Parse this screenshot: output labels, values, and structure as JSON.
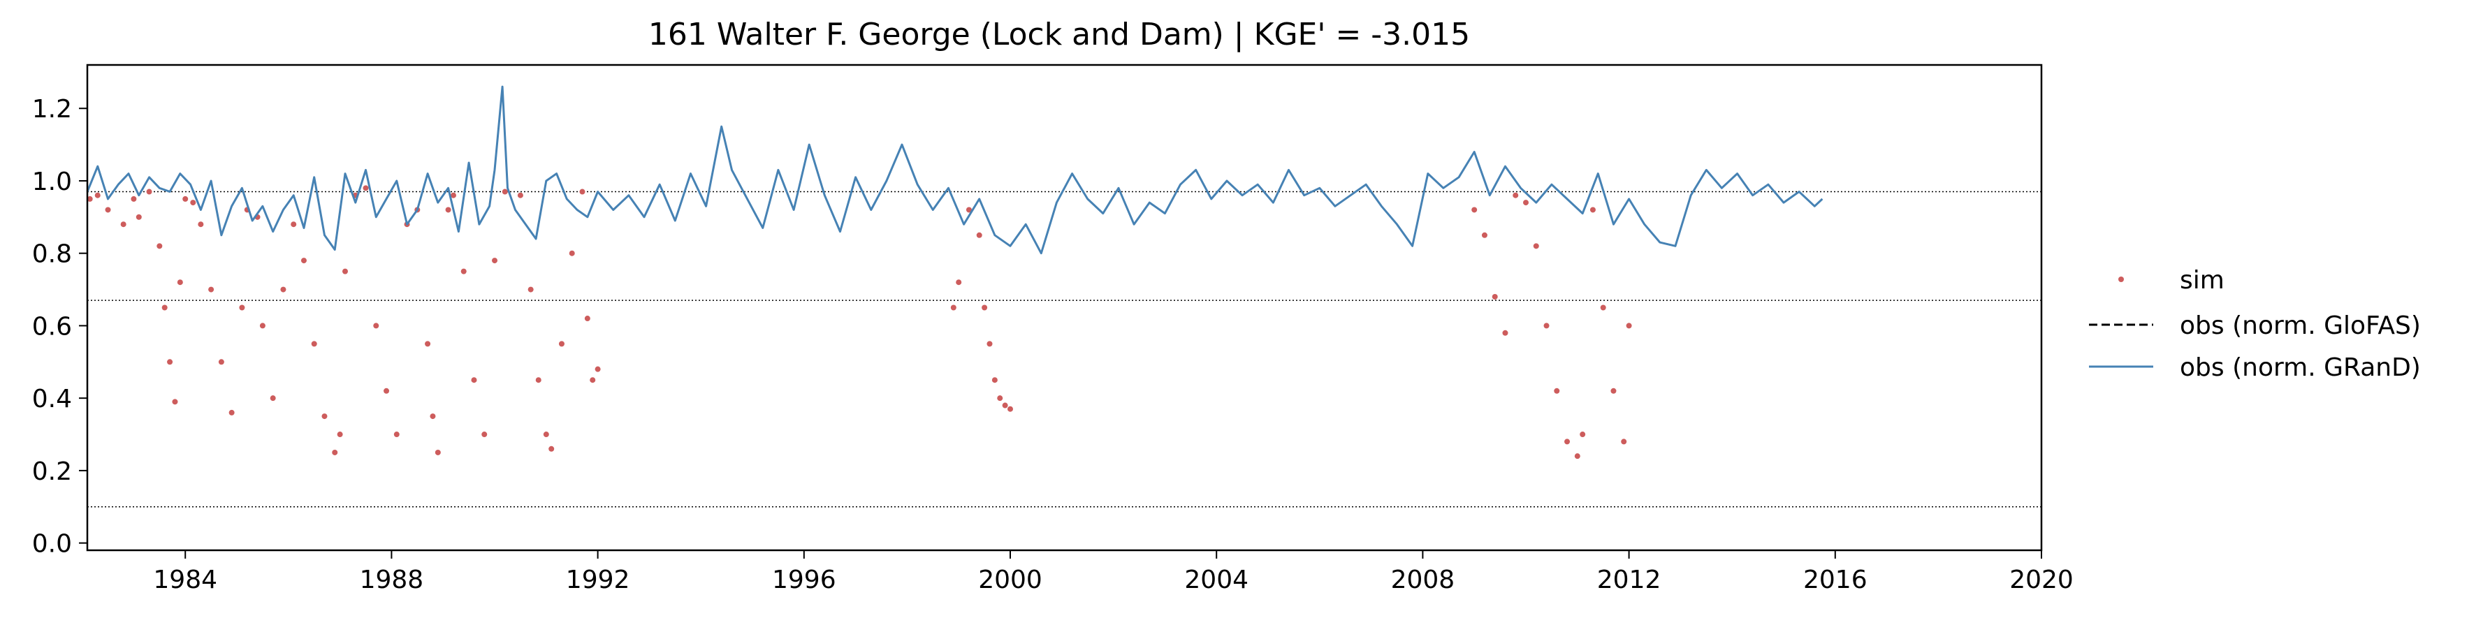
{
  "chart_data": {
    "type": "line",
    "title": "161  Walter F. George (Lock and  Dam) | KGE' = -3.015",
    "xlabel": "",
    "ylabel": "",
    "xlim": [
      1982.1,
      2020.0
    ],
    "ylim": [
      -0.02,
      1.32
    ],
    "x_ticks": [
      1984,
      1988,
      1992,
      1996,
      2000,
      2004,
      2008,
      2012,
      2016,
      2020
    ],
    "y_ticks": [
      0.0,
      0.2,
      0.4,
      0.6,
      0.8,
      1.0,
      1.2
    ],
    "y_tick_labels": [
      "0.0",
      "0.2",
      "0.4",
      "0.6",
      "0.8",
      "1.0",
      "1.2"
    ],
    "reference_lines": [
      0.97,
      0.67,
      0.1
    ],
    "grid": false,
    "legend_position": "right-outside",
    "series": [
      {
        "name": "sim",
        "style": "scatter",
        "color": "#cd5c5c",
        "x": [
          1982.15,
          1982.3,
          1982.5,
          1982.8,
          1983.0,
          1983.1,
          1983.3,
          1983.5,
          1983.6,
          1983.7,
          1983.8,
          1983.9,
          1984.0,
          1984.15,
          1984.3,
          1984.5,
          1984.7,
          1984.9,
          1985.1,
          1985.2,
          1985.4,
          1985.5,
          1985.7,
          1985.9,
          1986.1,
          1986.3,
          1986.5,
          1986.7,
          1986.9,
          1987.0,
          1987.1,
          1987.3,
          1987.5,
          1987.7,
          1987.9,
          1988.1,
          1988.3,
          1988.5,
          1988.7,
          1988.8,
          1988.9,
          1989.1,
          1989.2,
          1989.4,
          1989.6,
          1989.8,
          1990.0,
          1990.2,
          1990.5,
          1990.7,
          1990.85,
          1991.0,
          1991.1,
          1991.3,
          1991.5,
          1991.7,
          1991.8,
          1991.9,
          1992.0,
          1998.9,
          1999.0,
          1999.2,
          1999.4,
          1999.5,
          1999.6,
          1999.7,
          1999.8,
          1999.9,
          2000.0,
          2009.0,
          2009.2,
          2009.4,
          2009.6,
          2009.8,
          2010.0,
          2010.2,
          2010.4,
          2010.6,
          2010.8,
          2011.0,
          2011.1,
          2011.3,
          2011.5,
          2011.7,
          2011.9,
          2012.0
        ],
        "y": [
          0.95,
          0.96,
          0.92,
          0.88,
          0.95,
          0.9,
          0.97,
          0.82,
          0.65,
          0.5,
          0.39,
          0.72,
          0.95,
          0.94,
          0.88,
          0.7,
          0.5,
          0.36,
          0.65,
          0.92,
          0.9,
          0.6,
          0.4,
          0.7,
          0.88,
          0.78,
          0.55,
          0.35,
          0.25,
          0.3,
          0.75,
          0.96,
          0.98,
          0.6,
          0.42,
          0.3,
          0.88,
          0.92,
          0.55,
          0.35,
          0.25,
          0.92,
          0.96,
          0.75,
          0.45,
          0.3,
          0.78,
          0.97,
          0.96,
          0.7,
          0.45,
          0.3,
          0.26,
          0.55,
          0.8,
          0.97,
          0.62,
          0.45,
          0.48,
          0.65,
          0.72,
          0.92,
          0.85,
          0.65,
          0.55,
          0.45,
          0.4,
          0.38,
          0.37,
          0.92,
          0.85,
          0.68,
          0.58,
          0.96,
          0.94,
          0.82,
          0.6,
          0.42,
          0.28,
          0.24,
          0.3,
          0.92,
          0.65,
          0.42,
          0.28,
          0.6
        ]
      },
      {
        "name": "obs (norm. GloFAS)",
        "style": "dashed",
        "color": "#000000",
        "x": [],
        "y": []
      },
      {
        "name": "obs (norm. GRanD)",
        "style": "line",
        "color": "#4682b4",
        "x": [
          1982.1,
          1982.3,
          1982.5,
          1982.7,
          1982.9,
          1983.1,
          1983.3,
          1983.5,
          1983.7,
          1983.9,
          1984.1,
          1984.3,
          1984.5,
          1984.7,
          1984.9,
          1985.1,
          1985.3,
          1985.5,
          1985.7,
          1985.9,
          1986.1,
          1986.3,
          1986.5,
          1986.7,
          1986.9,
          1987.1,
          1987.3,
          1987.5,
          1987.7,
          1987.9,
          1988.1,
          1988.3,
          1988.5,
          1988.7,
          1988.9,
          1989.1,
          1989.3,
          1989.5,
          1989.7,
          1989.9,
          1990.0,
          1990.15,
          1990.25,
          1990.4,
          1990.6,
          1990.8,
          1991.0,
          1991.2,
          1991.4,
          1991.6,
          1991.8,
          1992.0,
          1992.3,
          1992.6,
          1992.9,
          1993.2,
          1993.5,
          1993.8,
          1994.1,
          1994.4,
          1994.6,
          1994.9,
          1995.2,
          1995.5,
          1995.8,
          1996.1,
          1996.4,
          1996.7,
          1997.0,
          1997.3,
          1997.6,
          1997.9,
          1998.2,
          1998.5,
          1998.8,
          1999.1,
          1999.4,
          1999.7,
          2000.0,
          2000.3,
          2000.6,
          2000.9,
          2001.2,
          2001.5,
          2001.8,
          2002.1,
          2002.4,
          2002.7,
          2003.0,
          2003.3,
          2003.6,
          2003.9,
          2004.2,
          2004.5,
          2004.8,
          2005.1,
          2005.4,
          2005.7,
          2006.0,
          2006.3,
          2006.6,
          2006.9,
          2007.2,
          2007.5,
          2007.8,
          2008.1,
          2008.4,
          2008.7,
          2009.0,
          2009.3,
          2009.6,
          2009.9,
          2010.2,
          2010.5,
          2010.8,
          2011.1,
          2011.4,
          2011.7,
          2012.0,
          2012.3,
          2012.6,
          2012.9,
          2013.2,
          2013.5,
          2013.8,
          2014.1,
          2014.4,
          2014.7,
          2015.0,
          2015.3,
          2015.6,
          2015.75
        ],
        "y": [
          0.97,
          1.04,
          0.95,
          0.99,
          1.02,
          0.96,
          1.01,
          0.98,
          0.97,
          1.02,
          0.99,
          0.92,
          1.0,
          0.85,
          0.93,
          0.98,
          0.89,
          0.93,
          0.86,
          0.92,
          0.96,
          0.87,
          1.01,
          0.85,
          0.81,
          1.02,
          0.94,
          1.03,
          0.9,
          0.95,
          1.0,
          0.88,
          0.92,
          1.02,
          0.94,
          0.98,
          0.86,
          1.05,
          0.88,
          0.93,
          1.03,
          1.26,
          0.98,
          0.92,
          0.88,
          0.84,
          1.0,
          1.02,
          0.95,
          0.92,
          0.9,
          0.97,
          0.92,
          0.96,
          0.9,
          0.99,
          0.89,
          1.02,
          0.93,
          1.15,
          1.03,
          0.95,
          0.87,
          1.03,
          0.92,
          1.1,
          0.96,
          0.86,
          1.01,
          0.92,
          1.0,
          1.1,
          0.99,
          0.92,
          0.98,
          0.88,
          0.95,
          0.85,
          0.82,
          0.88,
          0.8,
          0.94,
          1.02,
          0.95,
          0.91,
          0.98,
          0.88,
          0.94,
          0.91,
          0.99,
          1.03,
          0.95,
          1.0,
          0.96,
          0.99,
          0.94,
          1.03,
          0.96,
          0.98,
          0.93,
          0.96,
          0.99,
          0.93,
          0.88,
          0.82,
          1.02,
          0.98,
          1.01,
          1.08,
          0.96,
          1.04,
          0.98,
          0.94,
          0.99,
          0.95,
          0.91,
          1.02,
          0.88,
          0.95,
          0.88,
          0.83,
          0.82,
          0.96,
          1.03,
          0.98,
          1.02,
          0.96,
          0.99,
          0.94,
          0.97,
          0.93,
          0.95
        ]
      }
    ]
  }
}
